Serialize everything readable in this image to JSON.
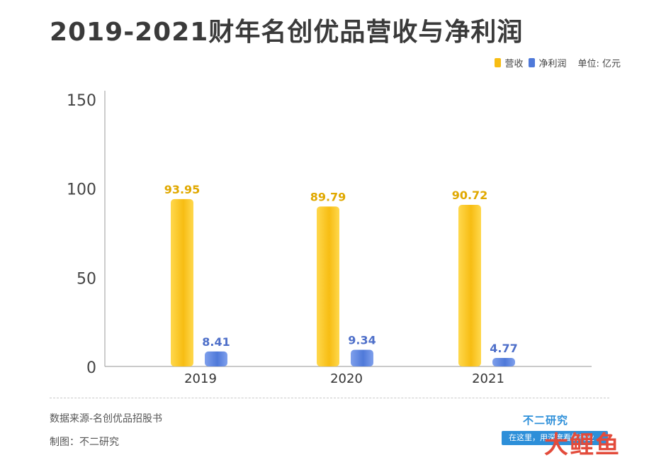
{
  "title": "2019-2021财年名创优品营收与净利润",
  "legend": {
    "revenue_label": "营收",
    "profit_label": "净利润",
    "unit": "单位: 亿元"
  },
  "colors": {
    "revenue": "#f7bd13",
    "revenue_light": "#ffd84d",
    "profit": "#4f79d9",
    "profit_light": "#7fa0ec",
    "revenue_label": "#e0a800",
    "profit_label": "#4e6fc9"
  },
  "chart_data": {
    "type": "bar",
    "categories": [
      "2019",
      "2020",
      "2021"
    ],
    "series": [
      {
        "name": "营收",
        "values": [
          93.95,
          89.79,
          90.72
        ]
      },
      {
        "name": "净利润",
        "values": [
          8.41,
          9.34,
          4.77
        ]
      }
    ],
    "ylim": [
      0,
      150
    ],
    "yticks": [
      0,
      50,
      100,
      150
    ],
    "data_labels": [
      [
        "93.95",
        "89.79",
        "90.72"
      ],
      [
        "8.41",
        "9.34",
        "4.77"
      ]
    ]
  },
  "footer": {
    "source": "数据来源-名创优品招股书",
    "maker": "制图：不二研究"
  },
  "watermark": {
    "brand": "不二研究",
    "banner": "在这里，用深度看懂商业",
    "logo": "大鲤鱼"
  }
}
